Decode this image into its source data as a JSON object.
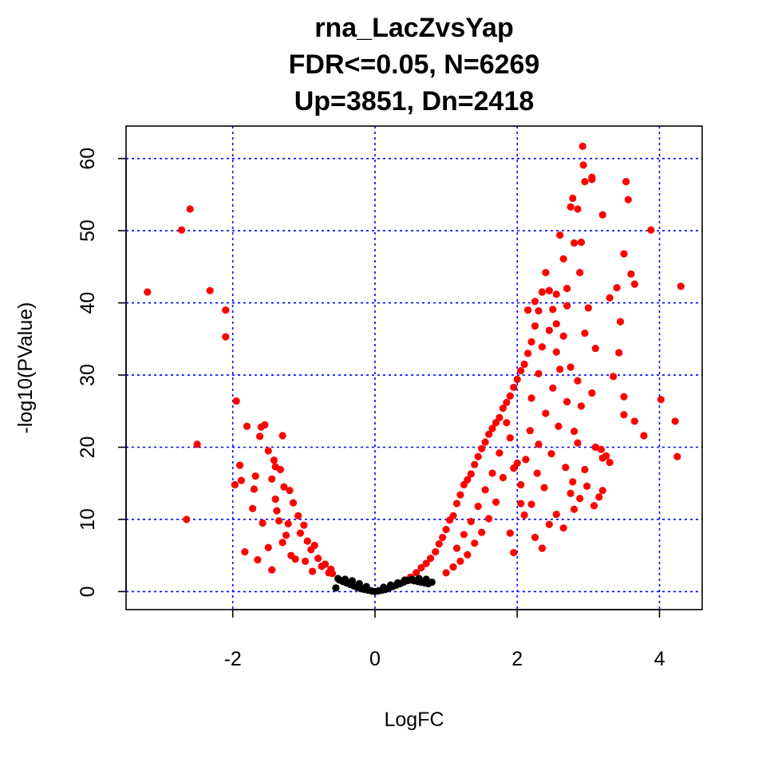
{
  "chart_data": {
    "type": "scatter",
    "title_lines": [
      "rna_LacZvsYap",
      "FDR<=0.05, N=6269",
      "Up=3851, Dn=2418"
    ],
    "xlabel": "LogFC",
    "ylabel": "-log10(PValue)",
    "xlim": [
      -3.5,
      4.6
    ],
    "ylim": [
      -2.5,
      64.5
    ],
    "x_ticks": [
      -2,
      0,
      2,
      4
    ],
    "x_tick_labels": [
      "-2",
      "0",
      "2",
      "4"
    ],
    "y_ticks": [
      0,
      10,
      20,
      30,
      40,
      50,
      60
    ],
    "y_tick_labels": [
      "0",
      "10",
      "20",
      "30",
      "40",
      "50",
      "60"
    ],
    "grid": true,
    "colors": {
      "significant": "#ff0000",
      "not_significant": "#000000",
      "grid": "#0000ff",
      "frame": "#000000"
    },
    "series": [
      {
        "group": "significant",
        "points": [
          [
            -3.2,
            41.5
          ],
          [
            -2.72,
            50.1
          ],
          [
            -2.6,
            53.0
          ],
          [
            -2.32,
            41.7
          ],
          [
            -2.1,
            39.0
          ],
          [
            -2.1,
            35.3
          ],
          [
            -2.65,
            10.0
          ],
          [
            -2.5,
            20.4
          ],
          [
            -1.95,
            26.4
          ],
          [
            -1.97,
            14.8
          ],
          [
            -1.9,
            17.5
          ],
          [
            -1.88,
            15.4
          ],
          [
            -1.8,
            22.9
          ],
          [
            -1.83,
            5.5
          ],
          [
            -1.72,
            11.5
          ],
          [
            -1.7,
            14.2
          ],
          [
            -1.68,
            16.0
          ],
          [
            -1.65,
            4.4
          ],
          [
            -1.62,
            21.5
          ],
          [
            -1.6,
            22.8
          ],
          [
            -1.55,
            23.1
          ],
          [
            -1.5,
            19.5
          ],
          [
            -1.45,
            15.6
          ],
          [
            -1.42,
            18.2
          ],
          [
            -1.4,
            17.3
          ],
          [
            -1.38,
            11.2
          ],
          [
            -1.35,
            9.8
          ],
          [
            -1.33,
            16.9
          ],
          [
            -1.3,
            21.6
          ],
          [
            -1.28,
            14.5
          ],
          [
            -1.25,
            7.8
          ],
          [
            -1.22,
            9.4
          ],
          [
            -1.2,
            14.0
          ],
          [
            -1.15,
            12.3
          ],
          [
            -1.12,
            4.5
          ],
          [
            -1.08,
            10.5
          ],
          [
            -1.05,
            8.1
          ],
          [
            -1.0,
            9.2
          ],
          [
            -0.95,
            7.0
          ],
          [
            -0.9,
            5.8
          ],
          [
            -0.85,
            6.4
          ],
          [
            -0.8,
            4.6
          ],
          [
            -0.75,
            3.5
          ],
          [
            -0.7,
            3.8
          ],
          [
            -0.65,
            2.6
          ],
          [
            -0.62,
            3.1
          ],
          [
            -0.6,
            2.5
          ],
          [
            -1.45,
            3.0
          ],
          [
            -1.5,
            6.1
          ],
          [
            -1.58,
            9.5
          ],
          [
            -1.3,
            6.8
          ],
          [
            -1.4,
            12.8
          ],
          [
            -1.18,
            5.0
          ],
          [
            -0.98,
            4.2
          ],
          [
            -0.88,
            2.8
          ],
          [
            0.5,
            2.0
          ],
          [
            0.58,
            2.6
          ],
          [
            0.65,
            3.3
          ],
          [
            0.72,
            3.9
          ],
          [
            0.78,
            4.6
          ],
          [
            0.85,
            5.5
          ],
          [
            0.9,
            6.6
          ],
          [
            0.95,
            7.5
          ],
          [
            1.0,
            8.6
          ],
          [
            1.05,
            9.9
          ],
          [
            1.1,
            10.5
          ],
          [
            1.15,
            12.2
          ],
          [
            1.2,
            13.4
          ],
          [
            1.25,
            14.8
          ],
          [
            1.3,
            15.5
          ],
          [
            1.35,
            16.3
          ],
          [
            1.4,
            17.6
          ],
          [
            1.45,
            18.7
          ],
          [
            1.5,
            19.8
          ],
          [
            1.55,
            20.7
          ],
          [
            1.6,
            21.8
          ],
          [
            1.65,
            22.6
          ],
          [
            1.7,
            23.4
          ],
          [
            1.75,
            24.1
          ],
          [
            1.8,
            25.4
          ],
          [
            1.85,
            26.2
          ],
          [
            1.9,
            27.1
          ],
          [
            1.95,
            28.3
          ],
          [
            2.0,
            29.4
          ],
          [
            2.05,
            30.6
          ],
          [
            2.1,
            31.5
          ],
          [
            2.15,
            33.0
          ],
          [
            2.2,
            34.6
          ],
          [
            2.25,
            36.8
          ],
          [
            2.3,
            38.9
          ],
          [
            2.35,
            41.5
          ],
          [
            2.4,
            44.2
          ],
          [
            2.45,
            41.7
          ],
          [
            2.5,
            39.1
          ],
          [
            2.55,
            37.1
          ],
          [
            2.6,
            49.4
          ],
          [
            2.65,
            46.1
          ],
          [
            2.7,
            42.0
          ],
          [
            2.75,
            53.3
          ],
          [
            2.78,
            54.5
          ],
          [
            2.8,
            48.3
          ],
          [
            2.85,
            53.0
          ],
          [
            2.88,
            44.2
          ],
          [
            2.9,
            48.4
          ],
          [
            2.92,
            61.7
          ],
          [
            2.93,
            59.1
          ],
          [
            2.95,
            56.8
          ],
          [
            3.05,
            57.1
          ],
          [
            3.05,
            57.4
          ],
          [
            3.2,
            52.2
          ],
          [
            3.5,
            46.8
          ],
          [
            3.53,
            56.8
          ],
          [
            3.56,
            54.3
          ],
          [
            3.6,
            44.0
          ],
          [
            3.65,
            42.6
          ],
          [
            3.88,
            50.1
          ],
          [
            4.3,
            42.3
          ],
          [
            4.02,
            26.6
          ],
          [
            4.22,
            23.6
          ],
          [
            4.25,
            18.7
          ],
          [
            3.78,
            21.6
          ],
          [
            3.65,
            23.6
          ],
          [
            3.5,
            27.0
          ],
          [
            3.5,
            24.5
          ],
          [
            3.3,
            40.7
          ],
          [
            3.4,
            42.1
          ],
          [
            3.45,
            37.4
          ],
          [
            3.43,
            33.1
          ],
          [
            3.35,
            29.8
          ],
          [
            3.3,
            17.9
          ],
          [
            3.1,
            33.7
          ],
          [
            3.0,
            39.3
          ],
          [
            2.95,
            35.8
          ],
          [
            3.05,
            27.5
          ],
          [
            2.95,
            16.9
          ],
          [
            2.85,
            20.6
          ],
          [
            2.8,
            11.4
          ],
          [
            2.75,
            13.6
          ],
          [
            2.65,
            8.8
          ],
          [
            2.55,
            10.7
          ],
          [
            2.45,
            9.3
          ],
          [
            2.35,
            6.0
          ],
          [
            2.25,
            7.5
          ],
          [
            2.2,
            12.1
          ],
          [
            2.1,
            10.6
          ],
          [
            2.05,
            14.8
          ],
          [
            2.0,
            17.8
          ],
          [
            2.3,
            20.4
          ],
          [
            2.4,
            24.7
          ],
          [
            2.5,
            28.2
          ],
          [
            2.6,
            30.8
          ],
          [
            2.7,
            26.3
          ],
          [
            2.8,
            22.2
          ],
          [
            2.9,
            25.7
          ],
          [
            3.1,
            20.0
          ],
          [
            3.15,
            13.1
          ],
          [
            3.2,
            18.5
          ],
          [
            3.25,
            18.8
          ],
          [
            3.2,
            14.0
          ],
          [
            2.55,
            33.2
          ],
          [
            2.65,
            35.4
          ],
          [
            2.75,
            31.1
          ],
          [
            2.85,
            29.2
          ],
          [
            2.2,
            26.8
          ],
          [
            2.3,
            30.2
          ],
          [
            2.35,
            33.9
          ],
          [
            2.15,
            39.0
          ],
          [
            2.25,
            40.2
          ],
          [
            2.45,
            36.2
          ],
          [
            2.55,
            41.2
          ],
          [
            2.7,
            39.6
          ],
          [
            1.9,
            21.3
          ],
          [
            1.8,
            15.8
          ],
          [
            1.7,
            12.4
          ],
          [
            1.6,
            10.1
          ],
          [
            1.5,
            8.2
          ],
          [
            1.4,
            6.7
          ],
          [
            1.3,
            5.1
          ],
          [
            1.2,
            4.2
          ],
          [
            1.1,
            3.4
          ],
          [
            1.0,
            2.6
          ],
          [
            1.75,
            19.2
          ],
          [
            1.85,
            23.4
          ],
          [
            1.95,
            17.1
          ],
          [
            1.65,
            16.4
          ],
          [
            1.55,
            14.1
          ],
          [
            1.45,
            11.8
          ],
          [
            1.35,
            9.7
          ],
          [
            1.25,
            7.9
          ],
          [
            1.15,
            6.0
          ],
          [
            1.9,
            8.1
          ],
          [
            1.95,
            5.4
          ],
          [
            2.05,
            12.2
          ],
          [
            2.12,
            18.3
          ],
          [
            2.18,
            22.3
          ],
          [
            2.28,
            16.4
          ],
          [
            2.38,
            14.4
          ],
          [
            2.48,
            19.1
          ],
          [
            2.58,
            22.9
          ],
          [
            2.68,
            17.2
          ],
          [
            2.78,
            15.2
          ],
          [
            2.88,
            12.9
          ],
          [
            2.98,
            14.6
          ],
          [
            3.08,
            11.9
          ],
          [
            3.18,
            19.7
          ]
        ]
      },
      {
        "group": "not_significant",
        "points": [
          [
            -0.55,
            0.5
          ],
          [
            -0.5,
            1.6
          ],
          [
            -0.45,
            1.4
          ],
          [
            -0.4,
            1.2
          ],
          [
            -0.35,
            1.0
          ],
          [
            -0.3,
            0.8
          ],
          [
            -0.25,
            0.6
          ],
          [
            -0.2,
            0.4
          ],
          [
            -0.15,
            0.3
          ],
          [
            -0.1,
            0.2
          ],
          [
            -0.05,
            0.1
          ],
          [
            0.0,
            0.0
          ],
          [
            0.05,
            0.1
          ],
          [
            0.1,
            0.2
          ],
          [
            0.15,
            0.3
          ],
          [
            0.2,
            0.5
          ],
          [
            0.25,
            0.7
          ],
          [
            0.3,
            0.9
          ],
          [
            0.35,
            1.1
          ],
          [
            0.4,
            1.3
          ],
          [
            0.45,
            1.5
          ],
          [
            0.5,
            1.6
          ],
          [
            0.55,
            1.5
          ],
          [
            0.6,
            1.4
          ],
          [
            0.65,
            1.3
          ],
          [
            0.7,
            1.2
          ],
          [
            0.75,
            1.1
          ],
          [
            0.8,
            1.3
          ],
          [
            -0.52,
            1.8
          ],
          [
            -0.42,
            1.7
          ],
          [
            -0.32,
            1.5
          ],
          [
            -0.22,
            1.1
          ],
          [
            -0.12,
            0.7
          ],
          [
            0.12,
            0.6
          ],
          [
            0.22,
            0.9
          ],
          [
            0.32,
            1.2
          ],
          [
            0.42,
            1.6
          ],
          [
            0.52,
            1.7
          ],
          [
            0.62,
            1.8
          ],
          [
            0.72,
            1.7
          ]
        ]
      }
    ]
  }
}
